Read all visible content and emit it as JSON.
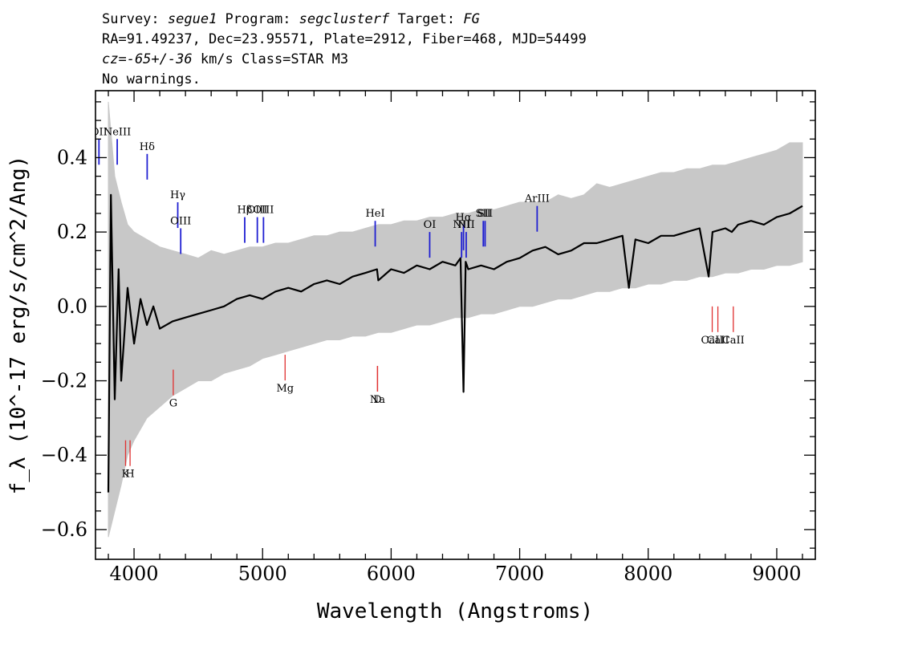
{
  "header": {
    "line1_a": "Survey: ",
    "line1_survey": "segue1",
    "line1_b": " Program: ",
    "line1_program": "segclusterf",
    "line1_c": " Target: ",
    "line1_target": "FG",
    "line2": "RA=91.49237, Dec=23.95571, Plate=2912, Fiber=468, MJD=54499",
    "line3_cz": "cz=-65+/-36",
    "line3_rest": " km/s Class=STAR M3",
    "line4": "No warnings."
  },
  "chart_data": {
    "type": "line",
    "xlabel": "Wavelength (Angstroms)",
    "ylabel": "f_λ (10^-17 erg/s/cm^2/Ang)",
    "xlim": [
      3700,
      9300
    ],
    "ylim": [
      -0.68,
      0.58
    ],
    "xticks": [
      4000,
      5000,
      6000,
      7000,
      8000,
      9000
    ],
    "yticks": [
      -0.6,
      -0.4,
      -0.2,
      0.0,
      0.2,
      0.4
    ],
    "ytick_labels": [
      "−0.6",
      "−0.4",
      "−0.2",
      "0.0",
      "0.2",
      "0.4"
    ],
    "grid": false,
    "series": [
      {
        "color": "#c8c8c8",
        "x": [
          3800,
          3850,
          3900,
          3950,
          4000,
          4100,
          4200,
          4300,
          4400,
          4500,
          4600,
          4700,
          4800,
          4900,
          5000,
          5100,
          5200,
          5300,
          5400,
          5500,
          5600,
          5700,
          5800,
          5900,
          6000,
          6100,
          6200,
          6300,
          6400,
          6500,
          6600,
          6700,
          6800,
          6900,
          7000,
          7100,
          7200,
          7300,
          7400,
          7500,
          7600,
          7700,
          7800,
          7900,
          8000,
          8100,
          8200,
          8300,
          8400,
          8500,
          8600,
          8700,
          8800,
          8900,
          9000,
          9100,
          9200
        ],
        "upper": [
          0.55,
          0.35,
          0.28,
          0.22,
          0.2,
          0.18,
          0.16,
          0.15,
          0.14,
          0.13,
          0.15,
          0.14,
          0.15,
          0.16,
          0.16,
          0.17,
          0.17,
          0.18,
          0.19,
          0.19,
          0.2,
          0.2,
          0.21,
          0.22,
          0.22,
          0.23,
          0.23,
          0.24,
          0.24,
          0.25,
          0.25,
          0.26,
          0.26,
          0.27,
          0.28,
          0.28,
          0.28,
          0.3,
          0.29,
          0.3,
          0.33,
          0.32,
          0.33,
          0.34,
          0.35,
          0.36,
          0.36,
          0.37,
          0.37,
          0.38,
          0.38,
          0.39,
          0.4,
          0.41,
          0.42,
          0.44,
          0.44
        ],
        "lower": [
          -0.62,
          -0.55,
          -0.48,
          -0.4,
          -0.36,
          -0.3,
          -0.27,
          -0.24,
          -0.22,
          -0.2,
          -0.2,
          -0.18,
          -0.17,
          -0.16,
          -0.14,
          -0.13,
          -0.12,
          -0.11,
          -0.1,
          -0.09,
          -0.09,
          -0.08,
          -0.08,
          -0.07,
          -0.07,
          -0.06,
          -0.05,
          -0.05,
          -0.04,
          -0.03,
          -0.03,
          -0.02,
          -0.02,
          -0.01,
          0.0,
          0.0,
          0.01,
          0.02,
          0.02,
          0.03,
          0.04,
          0.04,
          0.05,
          0.05,
          0.06,
          0.06,
          0.07,
          0.07,
          0.08,
          0.08,
          0.09,
          0.09,
          0.1,
          0.1,
          0.11,
          0.11,
          0.12
        ]
      },
      {
        "color": "#000000",
        "x": [
          3800,
          3820,
          3850,
          3880,
          3900,
          3950,
          4000,
          4050,
          4100,
          4150,
          4200,
          4300,
          4400,
          4500,
          4600,
          4700,
          4800,
          4900,
          5000,
          5100,
          5200,
          5300,
          5400,
          5500,
          5600,
          5700,
          5800,
          5890,
          5900,
          6000,
          6100,
          6200,
          6300,
          6400,
          6500,
          6540,
          6563,
          6580,
          6600,
          6700,
          6800,
          6900,
          7000,
          7100,
          7200,
          7300,
          7400,
          7500,
          7600,
          7700,
          7800,
          7850,
          7900,
          8000,
          8100,
          8200,
          8300,
          8400,
          8470,
          8500,
          8600,
          8650,
          8700,
          8800,
          8900,
          9000,
          9100,
          9200
        ],
        "y": [
          -0.5,
          0.3,
          -0.25,
          0.1,
          -0.2,
          0.05,
          -0.1,
          0.02,
          -0.05,
          0.0,
          -0.06,
          -0.04,
          -0.03,
          -0.02,
          -0.01,
          0.0,
          0.02,
          0.03,
          0.02,
          0.04,
          0.05,
          0.04,
          0.06,
          0.07,
          0.06,
          0.08,
          0.09,
          0.1,
          0.07,
          0.1,
          0.09,
          0.11,
          0.1,
          0.12,
          0.11,
          0.13,
          -0.23,
          0.12,
          0.1,
          0.11,
          0.1,
          0.12,
          0.13,
          0.15,
          0.16,
          0.14,
          0.15,
          0.17,
          0.17,
          0.18,
          0.19,
          0.05,
          0.18,
          0.17,
          0.19,
          0.19,
          0.2,
          0.21,
          0.08,
          0.2,
          0.21,
          0.2,
          0.22,
          0.23,
          0.22,
          0.24,
          0.25,
          0.27
        ]
      }
    ],
    "emission_lines": [
      {
        "label": "OII",
        "x": 3727,
        "y": 0.45
      },
      {
        "label": "NeIII",
        "x": 3869,
        "y": 0.45
      },
      {
        "label": "Hδ",
        "x": 4102,
        "y": 0.41
      },
      {
        "label": "Hγ",
        "x": 4340,
        "y": 0.28
      },
      {
        "label": "OIII",
        "x": 4363,
        "y": 0.21
      },
      {
        "label": "Hβ",
        "x": 4861,
        "y": 0.24
      },
      {
        "label": "OIII",
        "x": 4959,
        "y": 0.24
      },
      {
        "label": "OIII",
        "x": 5007,
        "y": 0.24
      },
      {
        "label": "HeI",
        "x": 5876,
        "y": 0.23
      },
      {
        "label": "OI",
        "x": 6300,
        "y": 0.2
      },
      {
        "label": "NII",
        "x": 6548,
        "y": 0.2
      },
      {
        "label": "Hα",
        "x": 6563,
        "y": 0.22
      },
      {
        "label": "NII",
        "x": 6584,
        "y": 0.2
      },
      {
        "label": "SII",
        "x": 6717,
        "y": 0.23
      },
      {
        "label": "SII",
        "x": 6731,
        "y": 0.23
      },
      {
        "label": "ArIII",
        "x": 7136,
        "y": 0.27
      }
    ],
    "absorption_lines": [
      {
        "label": "K",
        "x": 3934,
        "y": -0.36
      },
      {
        "label": "H",
        "x": 3969,
        "y": -0.36
      },
      {
        "label": "G",
        "x": 4305,
        "y": -0.17
      },
      {
        "label": "Mg",
        "x": 5175,
        "y": -0.13
      },
      {
        "label": "Na",
        "x": 5894,
        "y": -0.16
      },
      {
        "label": "D",
        "x": 5894,
        "y": -0.16
      },
      {
        "label": "CaII",
        "x": 8498,
        "y": 0.0
      },
      {
        "label": "CaII",
        "x": 8542,
        "y": 0.0
      },
      {
        "label": "CaII",
        "x": 8662,
        "y": 0.0
      }
    ]
  }
}
